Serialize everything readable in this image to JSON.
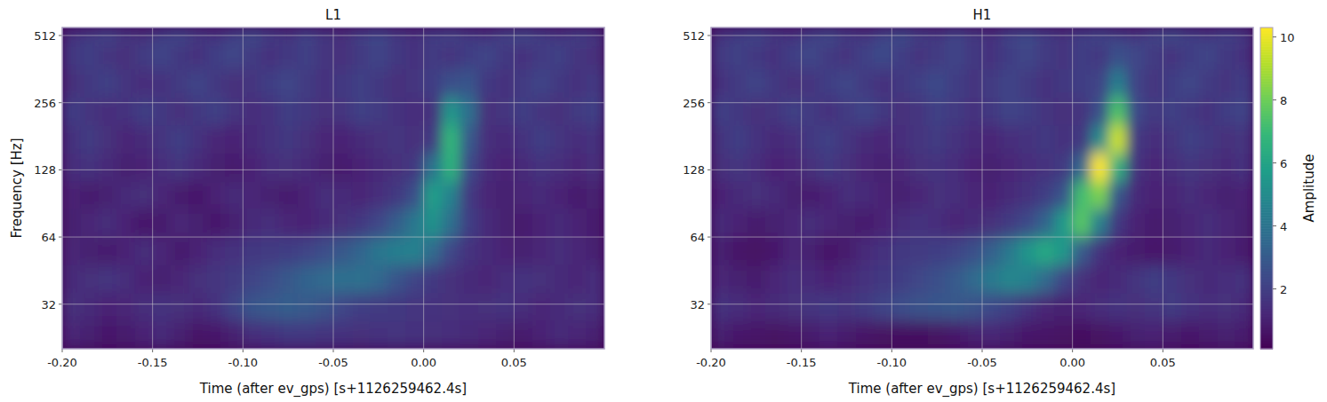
{
  "chart_data": [
    {
      "type": "heatmap",
      "title": "L1",
      "x_label": "Time (after ev_gps) [s+1126259462.4s]",
      "y_label": "Frequency [Hz]",
      "color": "viridis",
      "log": "y",
      "grid": true,
      "xlim": [
        -0.2,
        0.1
      ],
      "ylim": [
        20.2,
        556
      ],
      "xticks": [
        {
          "value": -0.2,
          "label": "-0.20"
        },
        -0.15,
        {
          "value": -0.1,
          "label": "-0.10"
        },
        -0.05,
        {
          "value": 0,
          "label": "0.00"
        },
        0.05
      ],
      "yticks": [
        32,
        64,
        128,
        256,
        512
      ],
      "x_edges": [
        -0.2,
        -0.19,
        -0.18,
        -0.17,
        -0.16,
        -0.15,
        -0.14,
        -0.13,
        -0.12,
        -0.11,
        -0.1,
        -0.09,
        -0.08,
        -0.07,
        -0.06,
        -0.05,
        -0.04,
        -0.03,
        -0.02,
        -0.01,
        0,
        0.01,
        0.02,
        0.03,
        0.04,
        0.05,
        0.06,
        0.07,
        0.08,
        0.09,
        0.1
      ],
      "y_edges": [
        20.2,
        27,
        36,
        48,
        64,
        86,
        114,
        152,
        203,
        271,
        362,
        483,
        556
      ],
      "cells": [
        [
          1.2,
          1.0,
          0.8,
          0.9,
          1.1,
          1.3,
          1.0,
          0.7,
          0.8,
          1.0,
          1.4,
          1.6,
          1.8,
          1.8,
          1.7,
          1.6,
          1.5,
          1.6,
          1.7,
          1.6,
          1.5,
          1.4,
          1.3,
          1.2,
          1.0,
          0.9,
          1.1,
          1.3,
          1.2,
          1.0
        ],
        [
          1.5,
          1.3,
          1.1,
          1.2,
          1.4,
          1.6,
          1.5,
          1.3,
          1.6,
          2.2,
          2.8,
          3.0,
          3.1,
          3.0,
          2.7,
          2.3,
          2.0,
          1.9,
          1.8,
          1.7,
          1.6,
          1.5,
          1.4,
          1.5,
          1.6,
          1.4,
          1.2,
          1.3,
          1.5,
          1.4
        ],
        [
          1.3,
          1.5,
          1.7,
          1.4,
          1.1,
          1.0,
          1.2,
          1.5,
          1.7,
          1.9,
          2.2,
          2.5,
          2.9,
          3.3,
          3.6,
          3.8,
          3.9,
          3.5,
          2.8,
          2.2,
          1.8,
          1.5,
          1.3,
          1.2,
          1.4,
          1.6,
          1.5,
          1.3,
          1.2,
          1.4
        ],
        [
          1.2,
          1.0,
          0.9,
          1.1,
          1.4,
          1.2,
          0.9,
          1.1,
          1.4,
          1.6,
          1.8,
          1.9,
          2.0,
          2.2,
          2.5,
          2.9,
          3.4,
          4.1,
          4.5,
          4.6,
          3.6,
          2.3,
          1.6,
          1.3,
          1.1,
          1.0,
          1.2,
          1.4,
          1.2,
          1.0
        ],
        [
          1.0,
          1.2,
          1.4,
          1.1,
          0.8,
          0.9,
          1.2,
          1.0,
          0.8,
          1.0,
          1.3,
          1.4,
          1.2,
          1.1,
          1.3,
          1.5,
          1.8,
          2.3,
          3.1,
          4.2,
          5.3,
          3.8,
          2.0,
          1.3,
          1.0,
          0.9,
          1.1,
          1.3,
          1.1,
          0.9
        ],
        [
          1.1,
          0.9,
          1.0,
          1.3,
          1.5,
          1.2,
          0.9,
          0.8,
          1.1,
          1.3,
          1.2,
          1.0,
          0.9,
          1.1,
          1.4,
          1.3,
          1.2,
          1.4,
          1.8,
          2.6,
          5.8,
          4.6,
          1.9,
          1.2,
          1.0,
          1.2,
          1.3,
          1.1,
          0.9,
          1.0
        ],
        [
          1.4,
          1.6,
          1.3,
          1.0,
          1.1,
          1.4,
          1.7,
          1.3,
          1.0,
          0.9,
          1.1,
          1.4,
          1.5,
          1.3,
          1.0,
          0.9,
          1.1,
          1.3,
          1.5,
          1.8,
          4.0,
          6.6,
          2.4,
          1.3,
          1.1,
          1.3,
          1.6,
          1.4,
          1.2,
          1.5
        ],
        [
          1.6,
          1.9,
          1.5,
          1.2,
          1.3,
          1.7,
          2.0,
          1.6,
          1.2,
          1.1,
          1.3,
          1.6,
          1.8,
          1.5,
          1.2,
          1.1,
          1.3,
          1.5,
          1.7,
          1.5,
          1.9,
          6.8,
          3.0,
          1.4,
          1.3,
          1.6,
          2.0,
          1.7,
          1.4,
          1.6
        ],
        [
          2.0,
          1.7,
          1.4,
          1.6,
          2.0,
          1.8,
          1.5,
          1.8,
          2.1,
          1.7,
          1.4,
          1.6,
          2.0,
          1.8,
          1.5,
          1.7,
          2.1,
          1.9,
          1.6,
          1.4,
          1.6,
          5.4,
          3.8,
          1.5,
          1.7,
          2.0,
          1.7,
          1.5,
          1.9,
          2.1
        ],
        [
          1.5,
          1.8,
          2.1,
          1.7,
          1.4,
          1.6,
          1.9,
          2.2,
          1.8,
          1.5,
          1.7,
          2.0,
          2.3,
          1.9,
          1.6,
          1.8,
          2.1,
          1.8,
          1.5,
          1.7,
          2.0,
          2.6,
          2.8,
          1.8,
          1.6,
          1.9,
          2.2,
          1.8,
          1.6,
          1.9
        ],
        [
          1.8,
          2.0,
          1.7,
          1.5,
          1.9,
          2.2,
          1.8,
          1.6,
          2.0,
          2.3,
          1.9,
          1.6,
          1.8,
          2.1,
          1.7,
          1.5,
          1.9,
          2.2,
          1.8,
          1.6,
          1.9,
          1.7,
          2.0,
          2.2,
          1.8,
          1.6,
          1.9,
          2.1,
          1.7,
          1.5
        ],
        [
          1.6,
          1.9,
          2.3,
          1.8,
          1.5,
          2.0,
          2.4,
          1.9,
          1.6,
          2.1,
          2.5,
          2.0,
          1.7,
          2.2,
          1.8,
          1.5,
          2.1,
          2.4,
          1.9,
          1.6,
          2.0,
          2.3,
          1.8,
          1.6,
          2.2,
          2.5,
          2.0,
          1.7,
          2.1,
          1.8
        ]
      ],
      "colorbar_range": [
        0.1,
        10.3
      ]
    },
    {
      "type": "heatmap",
      "title": "H1",
      "x_label": "Time (after ev_gps) [s+1126259462.4s]",
      "color": "viridis",
      "log": "y",
      "grid": true,
      "xlim": [
        -0.2,
        0.1
      ],
      "ylim": [
        20.2,
        556
      ],
      "xticks": [
        {
          "value": -0.2,
          "label": "-0.20"
        },
        -0.15,
        {
          "value": -0.1,
          "label": "-0.10"
        },
        -0.05,
        {
          "value": 0,
          "label": "0.00"
        },
        0.05
      ],
      "yticks": [
        32,
        64,
        128,
        256,
        512
      ],
      "x_edges": [
        -0.2,
        -0.19,
        -0.18,
        -0.17,
        -0.16,
        -0.15,
        -0.14,
        -0.13,
        -0.12,
        -0.11,
        -0.1,
        -0.09,
        -0.08,
        -0.07,
        -0.06,
        -0.05,
        -0.04,
        -0.03,
        -0.02,
        -0.01,
        0,
        0.01,
        0.02,
        0.03,
        0.04,
        0.05,
        0.06,
        0.07,
        0.08,
        0.09,
        0.1
      ],
      "y_edges": [
        20.2,
        27,
        36,
        48,
        64,
        86,
        114,
        152,
        203,
        271,
        362,
        483,
        556
      ],
      "cells": [
        [
          1.0,
          0.8,
          0.7,
          0.6,
          0.7,
          0.9,
          1.1,
          0.9,
          0.7,
          0.6,
          0.5,
          0.5,
          0.6,
          0.8,
          1.0,
          1.2,
          1.0,
          0.8,
          0.7,
          0.6,
          0.5,
          0.6,
          0.8,
          1.0,
          1.1,
          0.9,
          0.8,
          0.9,
          1.0,
          0.9
        ],
        [
          1.6,
          1.4,
          1.2,
          1.3,
          1.5,
          1.7,
          1.8,
          1.7,
          1.9,
          2.2,
          2.5,
          2.7,
          2.8,
          2.9,
          2.7,
          2.4,
          2.1,
          1.6,
          1.2,
          1.0,
          1.2,
          1.4,
          1.6,
          1.5,
          1.7,
          1.9,
          1.6,
          1.4,
          1.5,
          1.3
        ],
        [
          1.2,
          1.0,
          0.9,
          1.2,
          1.4,
          1.3,
          1.1,
          1.3,
          1.6,
          1.8,
          2.0,
          2.3,
          2.6,
          3.0,
          3.6,
          4.3,
          4.8,
          4.6,
          3.6,
          2.3,
          1.5,
          1.2,
          1.3,
          1.7,
          2.0,
          1.8,
          1.5,
          1.3,
          1.4,
          1.6
        ],
        [
          1.0,
          0.7,
          0.6,
          0.8,
          1.2,
          1.0,
          0.7,
          0.9,
          1.3,
          1.6,
          1.8,
          1.9,
          2.0,
          2.2,
          2.6,
          3.2,
          4.2,
          5.4,
          6.2,
          5.5,
          3.0,
          1.6,
          1.1,
          0.9,
          0.8,
          0.9,
          1.1,
          1.3,
          1.1,
          0.9
        ],
        [
          1.3,
          1.1,
          0.9,
          1.0,
          1.2,
          1.4,
          1.2,
          1.0,
          0.9,
          1.1,
          1.4,
          1.6,
          1.4,
          1.2,
          1.3,
          1.5,
          1.9,
          2.4,
          3.4,
          5.6,
          7.6,
          4.5,
          1.8,
          1.1,
          0.9,
          1.0,
          1.2,
          1.4,
          1.2,
          1.0
        ],
        [
          1.1,
          1.3,
          1.5,
          1.3,
          1.0,
          0.9,
          1.1,
          1.4,
          1.3,
          1.1,
          1.0,
          1.2,
          1.5,
          1.4,
          1.2,
          1.1,
          1.3,
          1.6,
          2.0,
          2.8,
          7.2,
          8.2,
          2.8,
          1.3,
          1.1,
          1.2,
          1.4,
          1.2,
          1.0,
          1.1
        ],
        [
          1.5,
          1.7,
          1.4,
          1.1,
          1.2,
          1.5,
          1.8,
          1.5,
          1.2,
          1.0,
          1.2,
          1.5,
          1.6,
          1.4,
          1.1,
          1.0,
          1.2,
          1.4,
          1.6,
          1.9,
          3.5,
          10.3,
          6.5,
          1.6,
          1.2,
          1.4,
          1.7,
          1.5,
          1.3,
          1.6
        ],
        [
          1.7,
          2.0,
          1.6,
          1.3,
          1.4,
          1.8,
          2.1,
          1.7,
          1.3,
          1.2,
          1.4,
          1.7,
          1.9,
          1.6,
          1.3,
          1.2,
          1.4,
          1.6,
          1.8,
          1.6,
          1.8,
          5.0,
          9.5,
          1.8,
          1.4,
          1.7,
          2.1,
          1.8,
          1.5,
          1.7
        ],
        [
          2.1,
          1.8,
          1.5,
          1.7,
          2.1,
          1.9,
          1.6,
          1.9,
          2.2,
          1.8,
          1.5,
          1.7,
          2.1,
          1.9,
          1.6,
          1.8,
          2.2,
          2.0,
          1.7,
          1.5,
          1.7,
          2.6,
          7.4,
          2.4,
          1.8,
          2.1,
          1.8,
          1.6,
          2.0,
          2.2
        ],
        [
          1.6,
          1.9,
          2.2,
          1.8,
          1.5,
          1.7,
          2.0,
          2.3,
          1.9,
          1.6,
          1.8,
          2.1,
          2.4,
          2.0,
          1.7,
          1.9,
          2.2,
          1.9,
          1.6,
          1.8,
          2.0,
          2.2,
          4.4,
          2.2,
          1.7,
          2.0,
          2.3,
          1.9,
          1.7,
          2.0
        ],
        [
          1.9,
          2.1,
          1.8,
          1.6,
          2.0,
          2.3,
          1.9,
          1.7,
          2.1,
          2.4,
          2.0,
          1.7,
          1.9,
          2.2,
          1.8,
          1.6,
          2.0,
          2.3,
          1.9,
          1.7,
          2.0,
          1.8,
          2.6,
          2.3,
          1.9,
          1.7,
          2.0,
          2.2,
          1.8,
          1.6
        ],
        [
          1.7,
          2.0,
          2.4,
          1.9,
          1.6,
          2.1,
          2.5,
          2.0,
          1.7,
          2.2,
          2.6,
          2.1,
          1.8,
          2.3,
          1.9,
          1.6,
          2.2,
          2.5,
          2.0,
          1.7,
          2.1,
          2.4,
          1.9,
          1.7,
          2.3,
          2.6,
          2.1,
          1.8,
          2.2,
          1.9
        ]
      ],
      "colorbar_range": [
        0.1,
        10.3
      ],
      "colorbar_label": "Amplitude",
      "colorbar_ticks": [
        2,
        4,
        6,
        8,
        10
      ]
    }
  ]
}
